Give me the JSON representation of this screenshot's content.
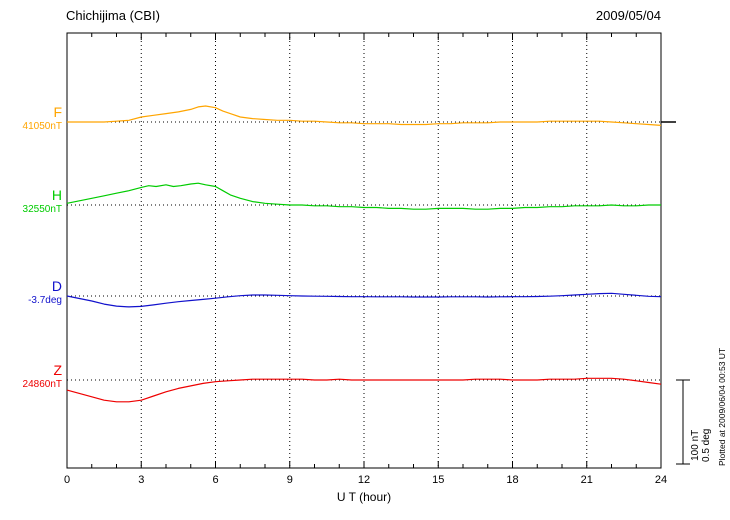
{
  "header": {
    "station": "Chichijima (CBI)",
    "date": "2009/05/04"
  },
  "scale_bar": {
    "line1": "100 nT",
    "line2": "0.5 deg"
  },
  "footnote": "Plotted at 2009/06/04 00:53 UT",
  "chart_data": {
    "type": "line",
    "title": "Chichijima (CBI) magnetogram 2009/05/04",
    "xlabel": "U T (hour)",
    "x_range": [
      0,
      24
    ],
    "x_tick_step": 3,
    "x_tick_labels": [
      "0",
      "3",
      "6",
      "9",
      "12",
      "15",
      "18",
      "21",
      "24"
    ],
    "grid": "dotted vertical at 3-hour intervals; dotted horizontal baseline per trace",
    "scale_bar_values": {
      "nT": 100,
      "deg": 0.5
    },
    "note": "points are [UT hour, offset from baseline_value in series units]",
    "series": [
      {
        "name": "F",
        "units": "nT",
        "baseline_value": 41050,
        "baseline_label": "41050nT",
        "color": "#FFA500",
        "points": [
          [
            0,
            0
          ],
          [
            0.5,
            0
          ],
          [
            1,
            0
          ],
          [
            1.5,
            0
          ],
          [
            2,
            1
          ],
          [
            2.5,
            2
          ],
          [
            3,
            6
          ],
          [
            3.5,
            8
          ],
          [
            4,
            10
          ],
          [
            4.5,
            12
          ],
          [
            5,
            15
          ],
          [
            5.3,
            18
          ],
          [
            5.6,
            19
          ],
          [
            6,
            17
          ],
          [
            6.3,
            13
          ],
          [
            6.7,
            9
          ],
          [
            7,
            6
          ],
          [
            7.5,
            4
          ],
          [
            8,
            3
          ],
          [
            8.5,
            2
          ],
          [
            9,
            2
          ],
          [
            9.5,
            1
          ],
          [
            10,
            1
          ],
          [
            10.5,
            0
          ],
          [
            11,
            -1
          ],
          [
            11.5,
            -1
          ],
          [
            12,
            -2
          ],
          [
            12.5,
            -2
          ],
          [
            13,
            -2
          ],
          [
            13.5,
            -3
          ],
          [
            14,
            -3
          ],
          [
            14.5,
            -3
          ],
          [
            15,
            -2
          ],
          [
            15.5,
            -2
          ],
          [
            16,
            -1
          ],
          [
            16.5,
            -1
          ],
          [
            17,
            -1
          ],
          [
            17.5,
            0
          ],
          [
            18,
            0
          ],
          [
            18.5,
            0
          ],
          [
            19,
            0
          ],
          [
            19.5,
            1
          ],
          [
            20,
            1
          ],
          [
            20.5,
            1
          ],
          [
            21,
            1
          ],
          [
            21.5,
            1
          ],
          [
            22,
            0
          ],
          [
            22.5,
            -1
          ],
          [
            23,
            -2
          ],
          [
            23.5,
            -3
          ],
          [
            24,
            -4
          ]
        ]
      },
      {
        "name": "H",
        "units": "nT",
        "baseline_value": 32550,
        "baseline_label": "32550nT",
        "color": "#00CC00",
        "points": [
          [
            0,
            2
          ],
          [
            0.5,
            5
          ],
          [
            1,
            8
          ],
          [
            1.5,
            11
          ],
          [
            2,
            14
          ],
          [
            2.5,
            17
          ],
          [
            3,
            21
          ],
          [
            3.3,
            23
          ],
          [
            3.6,
            22
          ],
          [
            4,
            24
          ],
          [
            4.3,
            22
          ],
          [
            4.6,
            23
          ],
          [
            5,
            25
          ],
          [
            5.3,
            26
          ],
          [
            5.6,
            24
          ],
          [
            6,
            22
          ],
          [
            6.3,
            17
          ],
          [
            6.6,
            12
          ],
          [
            7,
            8
          ],
          [
            7.5,
            4
          ],
          [
            8,
            2
          ],
          [
            8.5,
            1
          ],
          [
            9,
            0
          ],
          [
            9.5,
            0
          ],
          [
            10,
            -1
          ],
          [
            10.5,
            -1
          ],
          [
            11,
            -2
          ],
          [
            11.5,
            -2
          ],
          [
            12,
            -3
          ],
          [
            12.5,
            -3
          ],
          [
            13,
            -4
          ],
          [
            13.5,
            -4
          ],
          [
            14,
            -5
          ],
          [
            14.5,
            -5
          ],
          [
            15,
            -4
          ],
          [
            15.5,
            -4
          ],
          [
            16,
            -4
          ],
          [
            16.5,
            -5
          ],
          [
            17,
            -5
          ],
          [
            17.5,
            -4
          ],
          [
            18,
            -4
          ],
          [
            18.5,
            -3
          ],
          [
            19,
            -3
          ],
          [
            19.5,
            -2
          ],
          [
            20,
            -2
          ],
          [
            20.5,
            -1
          ],
          [
            21,
            -1
          ],
          [
            21.5,
            -1
          ],
          [
            22,
            0
          ],
          [
            22.5,
            -1
          ],
          [
            23,
            -1
          ],
          [
            23.5,
            0
          ],
          [
            24,
            0
          ]
        ]
      },
      {
        "name": "D",
        "units": "deg",
        "baseline_value": -3.7,
        "baseline_label": "-3.7deg",
        "color": "#1111CC",
        "points": [
          [
            0,
            0
          ],
          [
            0.5,
            -0.015
          ],
          [
            1,
            -0.03
          ],
          [
            1.5,
            -0.048
          ],
          [
            2,
            -0.06
          ],
          [
            2.5,
            -0.065
          ],
          [
            3,
            -0.062
          ],
          [
            3.5,
            -0.053
          ],
          [
            4,
            -0.043
          ],
          [
            4.5,
            -0.034
          ],
          [
            5,
            -0.027
          ],
          [
            5.5,
            -0.02
          ],
          [
            6,
            -0.013
          ],
          [
            6.5,
            -0.005
          ],
          [
            7,
            0.002
          ],
          [
            7.5,
            0.006
          ],
          [
            8,
            0.006
          ],
          [
            8.5,
            0.004
          ],
          [
            9,
            0.002
          ],
          [
            9.5,
            0
          ],
          [
            10,
            -0.001
          ],
          [
            10.5,
            -0.002
          ],
          [
            11,
            -0.003
          ],
          [
            11.5,
            -0.004
          ],
          [
            12,
            -0.004
          ],
          [
            12.5,
            -0.005
          ],
          [
            13,
            -0.005
          ],
          [
            13.5,
            -0.005
          ],
          [
            14,
            -0.006
          ],
          [
            14.5,
            -0.006
          ],
          [
            15,
            -0.006
          ],
          [
            15.5,
            -0.005
          ],
          [
            16,
            -0.005
          ],
          [
            16.5,
            -0.005
          ],
          [
            17,
            -0.006
          ],
          [
            17.5,
            -0.005
          ],
          [
            18,
            -0.004
          ],
          [
            18.5,
            -0.004
          ],
          [
            19,
            -0.003
          ],
          [
            19.5,
            -0.001
          ],
          [
            20,
            0.002
          ],
          [
            20.5,
            0.006
          ],
          [
            21,
            0.01
          ],
          [
            21.5,
            0.014
          ],
          [
            22,
            0.016
          ],
          [
            22.5,
            0.01
          ],
          [
            23,
            0.004
          ],
          [
            23.5,
            -0.002
          ],
          [
            24,
            -0.004
          ]
        ]
      },
      {
        "name": "Z",
        "units": "nT",
        "baseline_value": 24860,
        "baseline_label": "24860nT",
        "color": "#EE0000",
        "points": [
          [
            0,
            -12
          ],
          [
            0.5,
            -16
          ],
          [
            1,
            -20
          ],
          [
            1.5,
            -24
          ],
          [
            2,
            -26
          ],
          [
            2.5,
            -26
          ],
          [
            3,
            -24
          ],
          [
            3.5,
            -19
          ],
          [
            4,
            -14
          ],
          [
            4.5,
            -10
          ],
          [
            5,
            -7
          ],
          [
            5.5,
            -4
          ],
          [
            6,
            -2
          ],
          [
            6.5,
            -1
          ],
          [
            7,
            0
          ],
          [
            7.5,
            1
          ],
          [
            8,
            1
          ],
          [
            8.5,
            1
          ],
          [
            9,
            1
          ],
          [
            9.5,
            1
          ],
          [
            10,
            0
          ],
          [
            10.5,
            0
          ],
          [
            11,
            1
          ],
          [
            11.5,
            0
          ],
          [
            12,
            0
          ],
          [
            12.5,
            0
          ],
          [
            13,
            0
          ],
          [
            13.5,
            0
          ],
          [
            14,
            0
          ],
          [
            14.5,
            0
          ],
          [
            15,
            0
          ],
          [
            15.5,
            0
          ],
          [
            16,
            0
          ],
          [
            16.5,
            1
          ],
          [
            17,
            1
          ],
          [
            17.5,
            1
          ],
          [
            18,
            0
          ],
          [
            18.5,
            0
          ],
          [
            19,
            0
          ],
          [
            19.5,
            1
          ],
          [
            20,
            1
          ],
          [
            20.5,
            1
          ],
          [
            21,
            2
          ],
          [
            21.5,
            2
          ],
          [
            22,
            2
          ],
          [
            22.5,
            1
          ],
          [
            23,
            -1
          ],
          [
            23.5,
            -3
          ],
          [
            24,
            -5
          ]
        ]
      }
    ]
  }
}
